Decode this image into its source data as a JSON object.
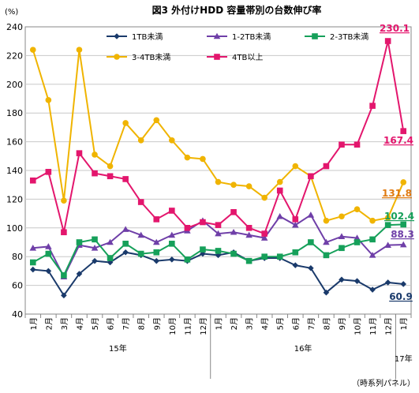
{
  "chart_data": {
    "type": "line",
    "title": "図3 外付けHDD 容量帯別の台数伸び率",
    "ylabel": "(%)",
    "ylim": [
      40,
      240
    ],
    "yticks": [
      40,
      60,
      80,
      100,
      120,
      140,
      160,
      180,
      200,
      220,
      240
    ],
    "grid": true,
    "legend_position": "top",
    "categories": [
      "1月",
      "2月",
      "3月",
      "4月",
      "5月",
      "6月",
      "7月",
      "8月",
      "9月",
      "10月",
      "11月",
      "12月",
      "1月",
      "2月",
      "3月",
      "4月",
      "5月",
      "6月",
      "7月",
      "8月",
      "9月",
      "10月",
      "11月",
      "12月",
      "1月"
    ],
    "year_groups": [
      {
        "label": "15年",
        "start": 0,
        "end": 11
      },
      {
        "label": "16年",
        "start": 12,
        "end": 23
      },
      {
        "label": "17年",
        "start": 24,
        "end": 24
      }
    ],
    "note": "（時系列パネル）",
    "series": [
      {
        "name": "1TB未満",
        "marker": "diamond",
        "color": "#1a3a6b",
        "values": [
          71,
          70,
          53,
          68,
          77,
          76,
          83,
          81,
          77,
          78,
          77,
          82,
          81,
          83,
          77,
          79,
          79,
          74,
          72,
          55,
          64,
          63,
          57,
          62,
          60.9
        ]
      },
      {
        "name": "1-2TB未満",
        "marker": "triangle",
        "color": "#6f3fa8",
        "values": [
          86,
          87,
          66,
          88,
          86,
          90,
          99,
          95,
          90,
          95,
          98,
          105,
          96,
          97,
          95,
          93,
          108,
          102,
          109,
          90,
          94,
          93,
          81,
          88,
          88.3
        ]
      },
      {
        "name": "2-3TB未満",
        "marker": "square",
        "color": "#16a05a",
        "values": [
          76,
          82,
          67,
          90,
          92,
          79,
          89,
          82,
          83,
          89,
          78,
          85,
          84,
          82,
          77,
          80,
          80,
          83,
          90,
          81,
          86,
          90,
          92,
          102,
          102.4
        ]
      },
      {
        "name": "3-4TB未満",
        "marker": "circle",
        "color": "#f0b400",
        "values": [
          224,
          189,
          119,
          224,
          151,
          143,
          173,
          161,
          175,
          161,
          149,
          148,
          132,
          130,
          129,
          121,
          132,
          143,
          136,
          105,
          108,
          113,
          105,
          107,
          131.8
        ]
      },
      {
        "name": "4TB以上",
        "marker": "square",
        "color": "#e3166d",
        "values": [
          133,
          139,
          97,
          152,
          138,
          136,
          134,
          118,
          106,
          112,
          100,
          104,
          102,
          111,
          100,
          96,
          126,
          106,
          136,
          143,
          158,
          158,
          185,
          230.1,
          167.4
        ]
      }
    ],
    "end_labels": [
      {
        "series": "4TB以上",
        "text": "230.1",
        "color": "#e3166d"
      },
      {
        "series": "4TB以上",
        "text": "167.4",
        "color": "#e3166d"
      },
      {
        "series": "3-4TB未満",
        "text": "131.8",
        "color": "#e07a10"
      },
      {
        "series": "2-3TB未満",
        "text": "102.4",
        "color": "#16a05a"
      },
      {
        "series": "1-2TB未満",
        "text": "88.3",
        "color": "#6f3fa8"
      },
      {
        "series": "1TB未満",
        "text": "60.9",
        "color": "#1a3a6b"
      }
    ]
  }
}
